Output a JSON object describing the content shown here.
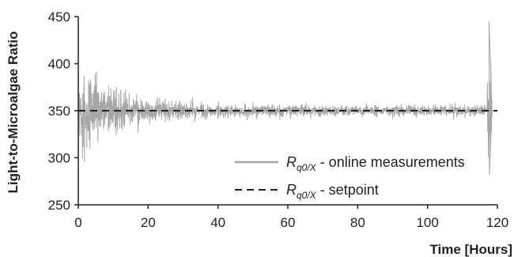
{
  "chart_data": {
    "type": "line",
    "xlabel": "Time [Hours]",
    "ylabel": "Light-to-Microalgae Ratio",
    "xlim": [
      0,
      120
    ],
    "ylim": [
      250,
      450
    ],
    "x_ticks": [
      0,
      20,
      40,
      60,
      80,
      100,
      120
    ],
    "y_ticks": [
      250,
      300,
      350,
      400,
      450
    ],
    "grid": false,
    "legend_position": "bottom-right",
    "series": [
      {
        "name_main": "R",
        "name_sub": "q0/X",
        "name_suffix": " - online measurements",
        "style": "solid",
        "color": "#a6a6a6",
        "description_envelope": {
          "x": [
            0,
            2,
            5,
            10,
            15,
            20,
            30,
            40,
            60,
            80,
            100,
            117,
            118,
            118.5
          ],
          "y_upper": [
            405,
            398,
            392,
            382,
            376,
            372,
            366,
            362,
            361,
            360,
            360,
            361,
            445,
            360
          ],
          "y_lower": [
            288,
            294,
            300,
            314,
            322,
            328,
            334,
            338,
            339,
            340,
            340,
            339,
            282,
            340
          ]
        }
      },
      {
        "name_main": "R",
        "name_sub": "q0/X",
        "name_suffix": " - setpoint",
        "style": "dashed",
        "color": "#222222",
        "x": [
          0,
          120
        ],
        "y": [
          350,
          350
        ]
      }
    ]
  }
}
